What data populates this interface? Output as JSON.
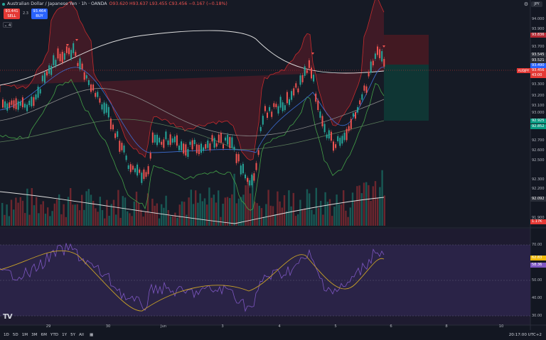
{
  "header": {
    "symbol_title": "Australian Dollar / Japanese Yen · 1h · OANDA",
    "ohlc": "O93.620 H93.637 L93.455 C93.456 −0.167 (−0.18%)"
  },
  "trade": {
    "sell_price": "93.441",
    "sell_label": "SELL",
    "spread": "2.3",
    "buy_price": "93.464",
    "buy_label": "BUY"
  },
  "collapse_label": "⌄ 4",
  "currency": "JPY",
  "price_axis": {
    "labels": [
      "94.000",
      "93.900",
      "93.700",
      "93.500",
      "93.300",
      "93.200",
      "93.100",
      "93.000",
      "92.700",
      "92.600",
      "92.500",
      "92.300",
      "92.200",
      "91.900"
    ],
    "badges": [
      {
        "text": "93.836",
        "color": "#b22833"
      },
      {
        "text": "93.545",
        "color": "#2a2e39"
      },
      {
        "text": "93.521",
        "color": "#2a2e39"
      },
      {
        "text": "93.490",
        "color": "#2962ff"
      },
      {
        "text": "93.456",
        "color": "#e53935"
      },
      {
        "text": "43:00",
        "color": "#e53935"
      },
      {
        "text": "92.925",
        "color": "#089981"
      },
      {
        "text": "92.852",
        "color": "#089981"
      },
      {
        "text": "92.092",
        "color": "#2a2e39"
      },
      {
        "text": "1.17K",
        "color": "#e53935"
      }
    ],
    "symbol_badge": "AUDJPY"
  },
  "rsi_axis": {
    "labels": [
      "70.00",
      "50.00",
      "40.00",
      "30.00"
    ],
    "badges": [
      {
        "text": "62.83",
        "color": "#f0b90b"
      },
      {
        "text": "58.36",
        "color": "#7e57c2"
      }
    ]
  },
  "time_axis": [
    "29",
    "30",
    "Jun",
    "3",
    "4",
    "5",
    "6",
    "8",
    "10"
  ],
  "footer": {
    "timeframes": [
      "1D",
      "5D",
      "1M",
      "3M",
      "6M",
      "YTD",
      "1Y",
      "5Y",
      "All"
    ],
    "clock": "20:17:00 UTC+2"
  },
  "tv_logo": "TV"
}
